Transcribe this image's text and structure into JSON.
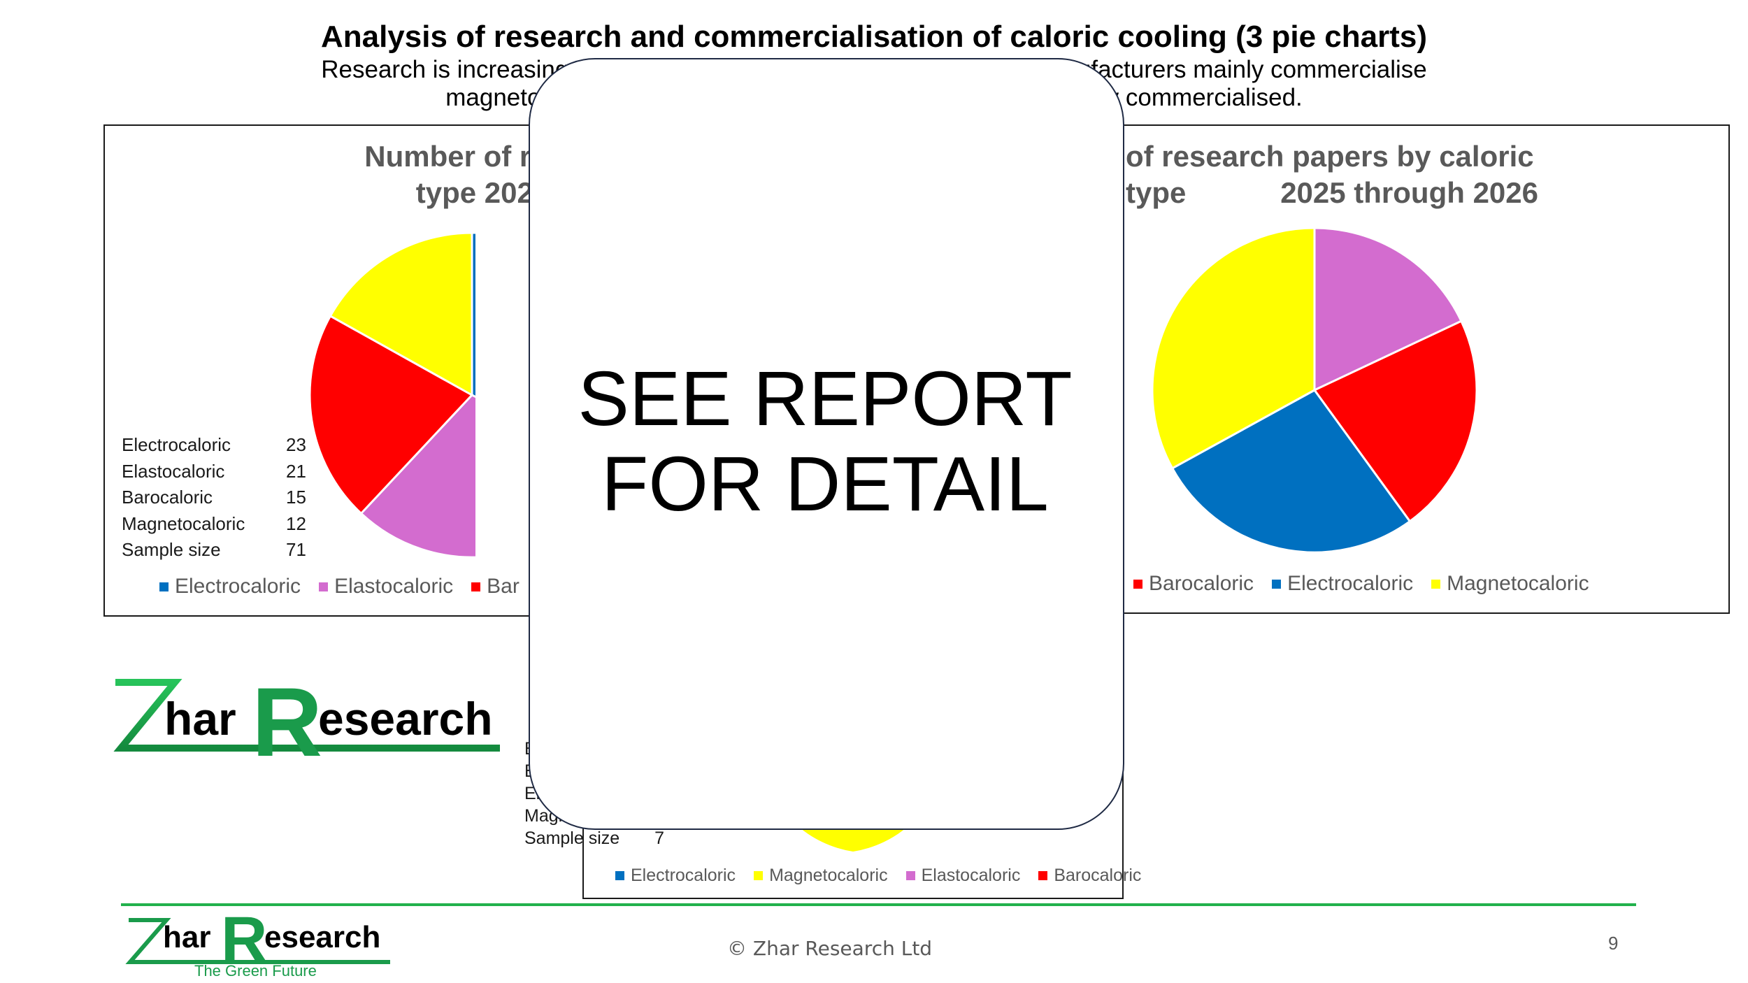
{
  "page": {
    "title": "Analysis of research and commercialisation of caloric cooling (3 pie charts)",
    "subtitle_line1": "Research is increasing across all types but the largest number of manufacturers mainly commercialise",
    "subtitle_line2": "magnetocaloric, partly because of which it will now be strongly commercialised.",
    "overlay_line1": "SEE REPORT",
    "overlay_line2": "FOR DETAIL",
    "copyright": "© Zhar Research Ltd",
    "page_number": "9",
    "logo_big": {
      "z": "Z",
      "har": "har",
      "r": "R",
      "esearch": "esearch"
    },
    "logo_small": {
      "z": "Z",
      "har": "har",
      "r": "R",
      "esearch": "esearch",
      "tagline": "The Green Future"
    }
  },
  "colors": {
    "Electrocaloric": "#0070c0",
    "Elastocaloric": "#d36ccf",
    "Barocaloric": "#ff0000",
    "Magnetocaloric": "#ffff00",
    "brand_green": "#22b14c"
  },
  "chart_data": [
    {
      "type": "pie",
      "title_line1": "Number of research pa",
      "title_line2": "type 2024 throu",
      "categories": [
        "Electrocaloric",
        "Elastocaloric",
        "Barocaloric",
        "Magnetocaloric"
      ],
      "values": [
        23,
        21,
        15,
        12
      ],
      "table": [
        {
          "label": "Electrocaloric",
          "value": "23"
        },
        {
          "label": "Elastocaloric",
          "value": "21"
        },
        {
          "label": "Barocaloric",
          "value": "15"
        },
        {
          "label": "Magnetocaloric",
          "value": "12"
        },
        {
          "label": "Sample size",
          "value": "71"
        }
      ],
      "legend": [
        "Electrocaloric",
        "Elastocaloric",
        "Bar"
      ]
    },
    {
      "type": "pie",
      "title_line1": "of research papers by caloric type",
      "title_line2": "2025 through 2026",
      "categories": [
        "Elastocaloric",
        "Barocaloric",
        "Electrocaloric",
        "Magnetocaloric"
      ],
      "values": [
        18,
        22,
        27,
        33
      ],
      "legend": [
        "c",
        "Barocaloric",
        "Electrocaloric",
        "Magnetocaloric"
      ]
    },
    {
      "type": "pie",
      "table": [
        {
          "label": "E",
          "value": ""
        },
        {
          "label": "Ba",
          "value": ""
        },
        {
          "label": "Elec",
          "value": ""
        },
        {
          "label": "Magnetoc",
          "value": ""
        },
        {
          "label": "Sample size",
          "value": "7"
        }
      ],
      "legend": [
        "Electrocaloric",
        "Magnetocaloric",
        "Elastocaloric",
        "Barocaloric"
      ]
    }
  ]
}
